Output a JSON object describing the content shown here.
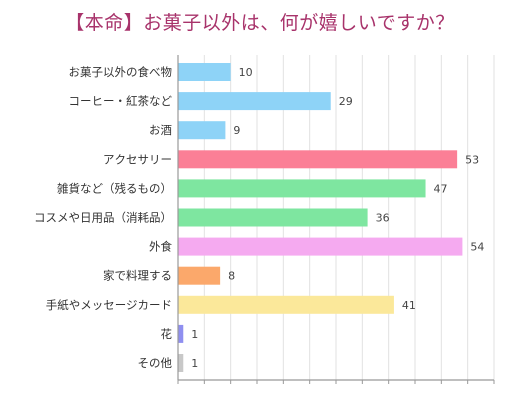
{
  "chart_data": {
    "type": "bar",
    "orientation": "horizontal",
    "title": "【本命】お菓子以外は、何が嬉しいですか？",
    "categories": [
      "お菓子以外の食べ物",
      "コーヒー・紅茶など",
      "お酒",
      "アクセサリー",
      "雑貨など（残るもの）",
      "コスメや日用品（消耗品）",
      "外食",
      "家で料理する",
      "手紙やメッセージカード",
      "花",
      "その他"
    ],
    "values": [
      10,
      29,
      9,
      53,
      47,
      36,
      54,
      8,
      41,
      1,
      1
    ],
    "colors": [
      "#8ed3f7",
      "#8ed3f7",
      "#8ed3f7",
      "#fb7f96",
      "#7ee6a0",
      "#7ee6a0",
      "#f5aaf0",
      "#fba86b",
      "#fbe89a",
      "#8f8ff0",
      "#c8c8c8"
    ],
    "xlim": [
      0,
      60
    ],
    "grid": true,
    "data_labels": true,
    "title_color": "#a8336b"
  }
}
